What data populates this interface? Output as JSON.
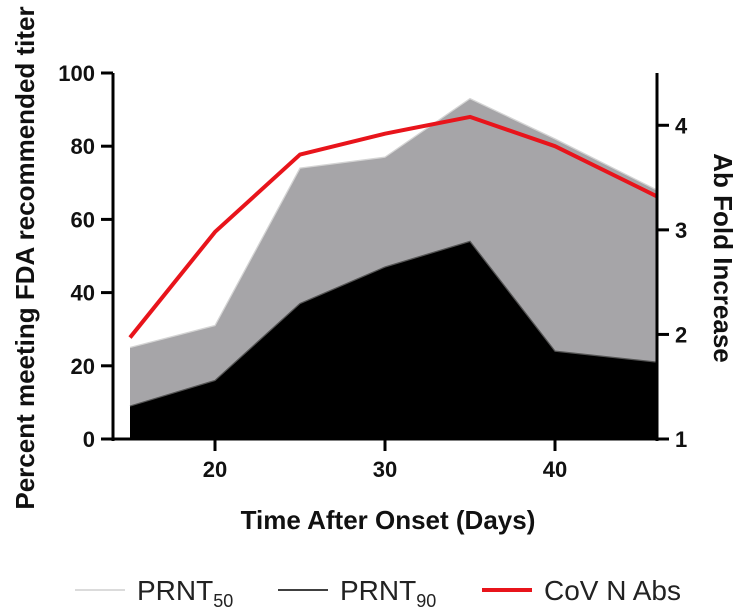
{
  "chart_data": {
    "type": "area",
    "x": [
      15,
      20,
      25,
      30,
      35,
      40,
      46
    ],
    "xlabel": "Time After Onset (Days)",
    "xlim": [
      14,
      46
    ],
    "xticks": [
      "20",
      "30",
      "40"
    ],
    "ylabel": "Percent meeting FDA recommended titer",
    "ylim": [
      0,
      100
    ],
    "yticks": [
      "0",
      "20",
      "40",
      "60",
      "80",
      "100"
    ],
    "y2label": "Ab Fold Increase",
    "y2lim": [
      1,
      4.5
    ],
    "y2ticks": [
      "1",
      "2",
      "3",
      "4"
    ],
    "series": [
      {
        "name": "PRNT50",
        "axis": "left",
        "style": "area",
        "color": "#a6a5a8",
        "values": [
          25,
          31,
          74,
          77,
          93,
          82,
          68
        ]
      },
      {
        "name": "PRNT90",
        "axis": "left",
        "style": "area",
        "color": "#000000",
        "values": [
          9,
          16,
          37,
          47,
          54,
          24,
          21
        ]
      },
      {
        "name": "CoV N Abs",
        "axis": "right",
        "style": "line",
        "color": "#e8141b",
        "values": [
          1.97,
          2.98,
          3.72,
          3.92,
          4.08,
          3.8,
          3.32
        ]
      }
    ],
    "legend": [
      {
        "label": "PRNT",
        "subscript": "50",
        "color": "#cfcfcf",
        "line": "thin"
      },
      {
        "label": "PRNT",
        "subscript": "90",
        "color": "#000000",
        "line": "thin"
      },
      {
        "label": "CoV N Abs",
        "subscript": "",
        "color": "#e8141b",
        "line": "thick"
      }
    ],
    "legend_position": "bottom",
    "grid": false
  }
}
